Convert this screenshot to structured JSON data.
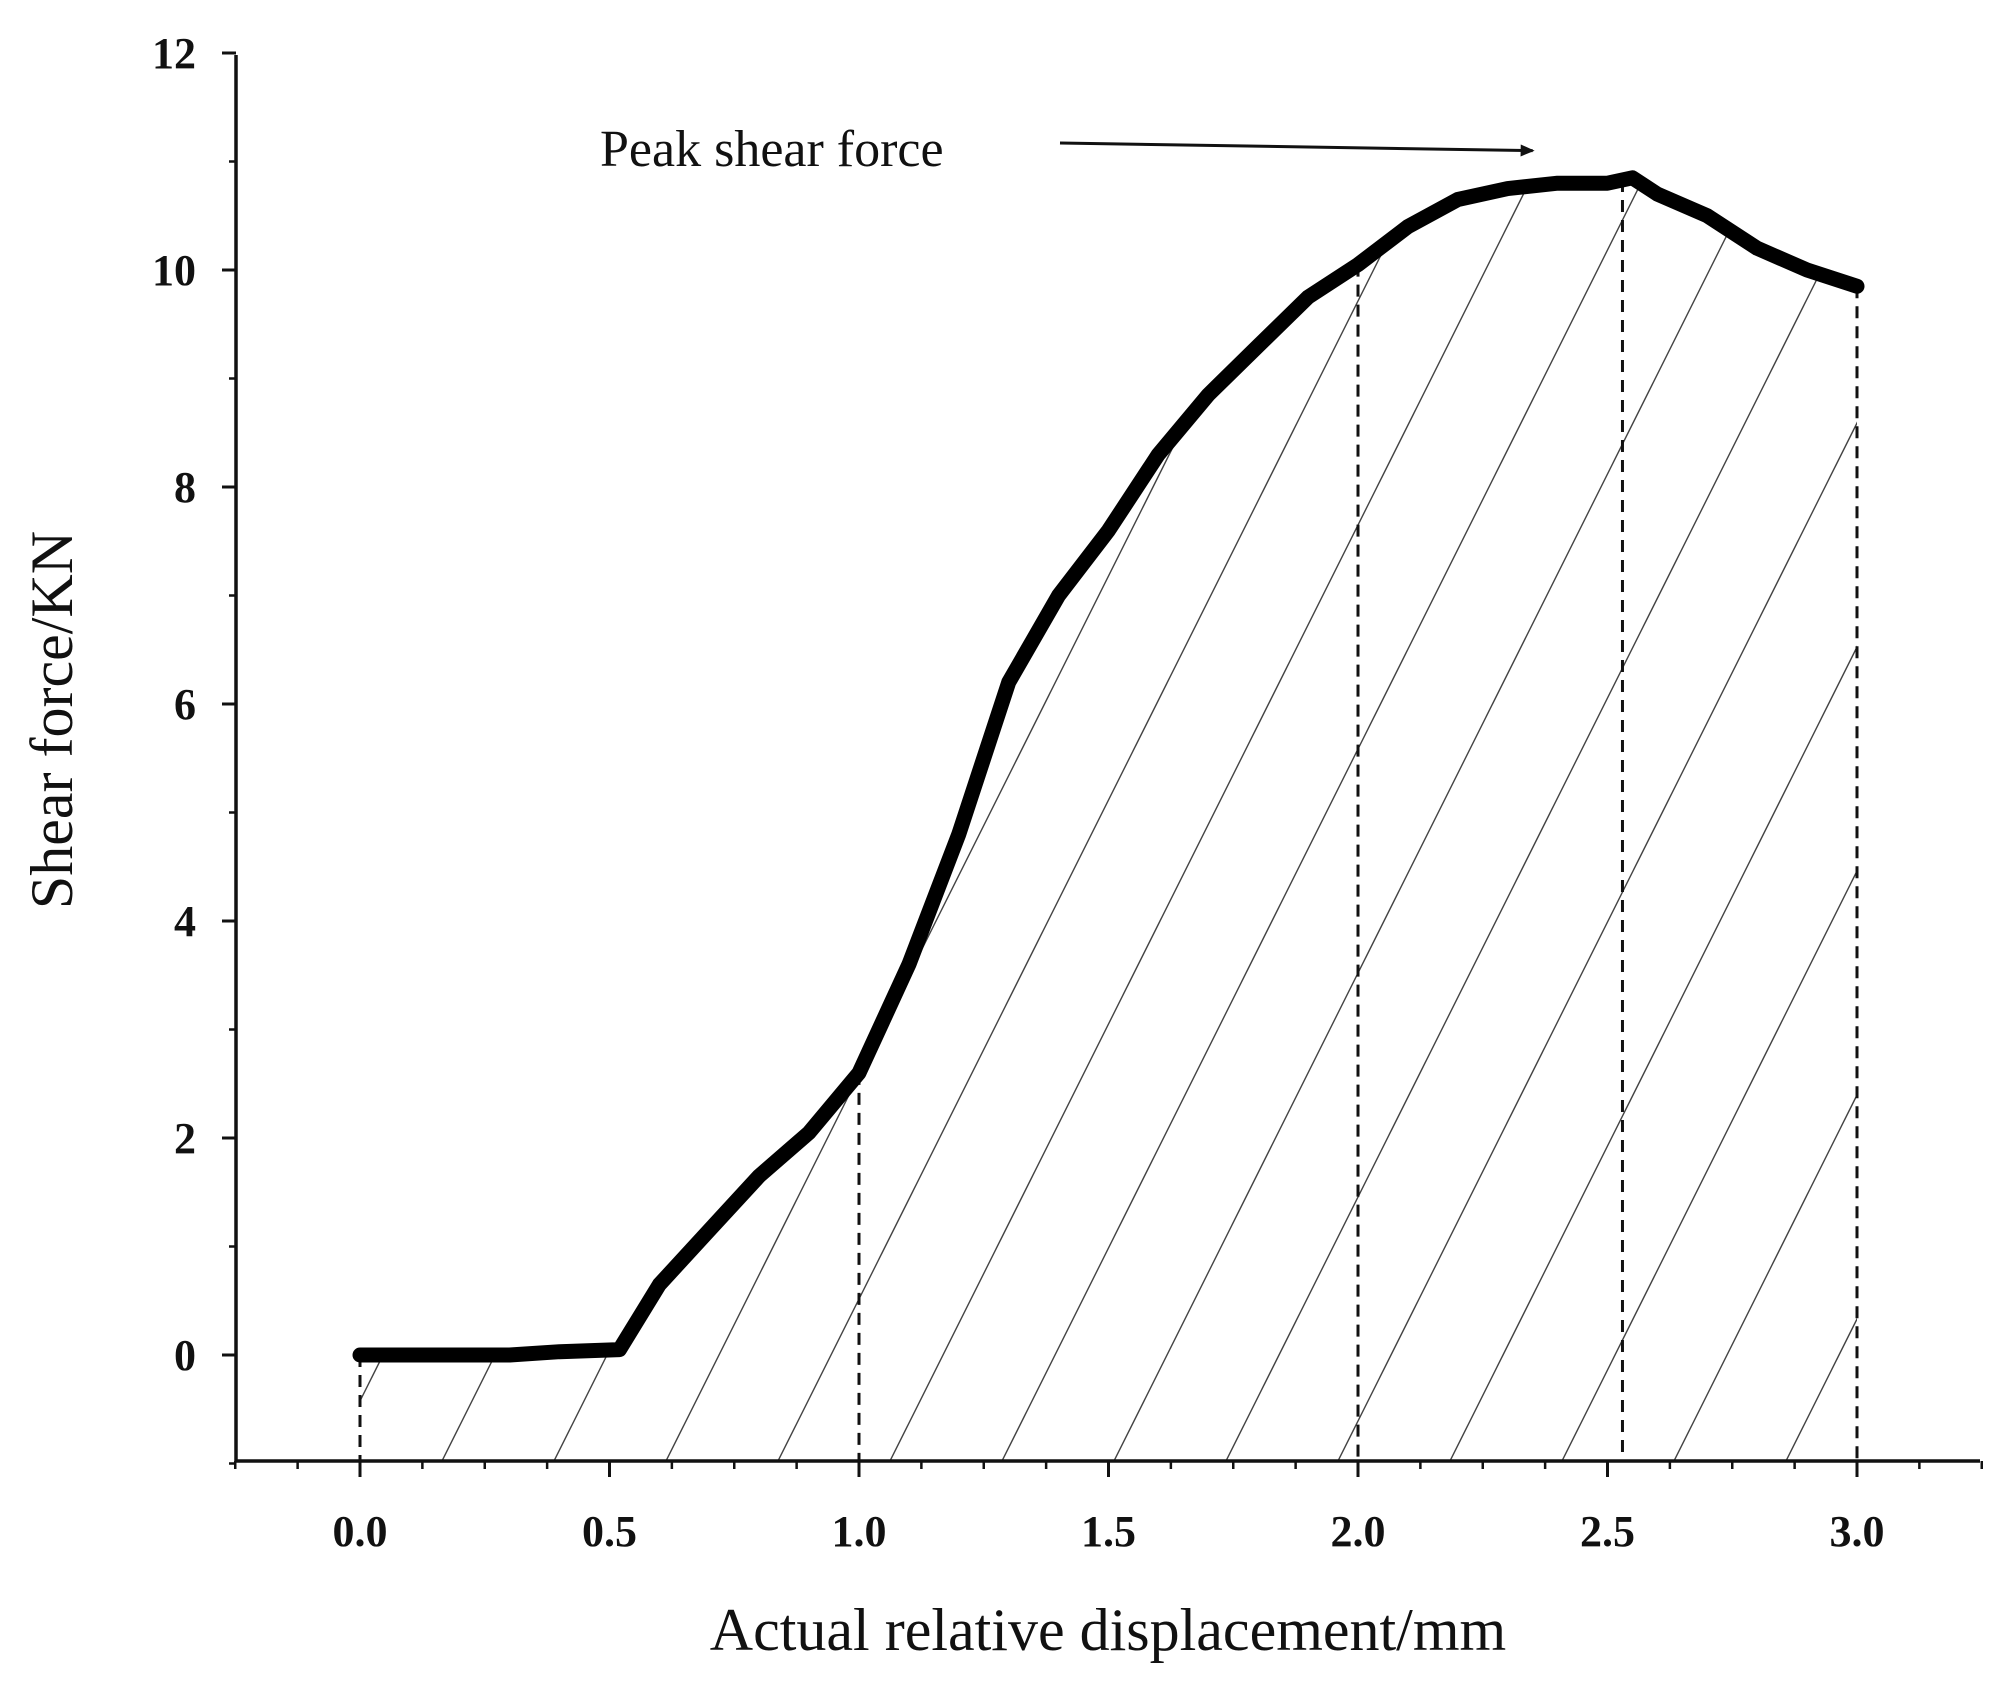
{
  "chart_data": {
    "type": "line",
    "title": "",
    "xlabel": "Actual relative displacement/mm",
    "ylabel": "Shear force/KN",
    "xlim": [
      -0.25,
      3.25
    ],
    "ylim": [
      -1,
      12
    ],
    "x_ticks": [
      0.0,
      0.5,
      1.0,
      1.5,
      2.0,
      2.5,
      3.0
    ],
    "x_tick_labels": [
      "0.0",
      "0.5",
      "1.0",
      "1.5",
      "2.0",
      "2.5",
      "3.0"
    ],
    "x_minor_step": 0.125,
    "y_ticks": [
      0,
      2,
      4,
      6,
      8,
      10,
      12
    ],
    "y_tick_labels": [
      "0",
      "2",
      "4",
      "6",
      "8",
      "10",
      "12"
    ],
    "y_minor_step": 1,
    "grid": false,
    "legend": "none",
    "series": [
      {
        "x": [
          0.0,
          0.1,
          0.2,
          0.3,
          0.4,
          0.52,
          0.6,
          0.7,
          0.8,
          0.9,
          1.0,
          1.1,
          1.2,
          1.3,
          1.4,
          1.5,
          1.6,
          1.7,
          1.8,
          1.9,
          2.0,
          2.1,
          2.2,
          2.3,
          2.4,
          2.5,
          2.55,
          2.6,
          2.7,
          2.8,
          2.9,
          3.0
        ],
        "y": [
          0.0,
          0.0,
          0.0,
          0.0,
          0.03,
          0.05,
          0.65,
          1.15,
          1.65,
          2.05,
          2.6,
          3.6,
          4.8,
          6.2,
          7.0,
          7.6,
          8.3,
          8.85,
          9.3,
          9.75,
          10.05,
          10.4,
          10.65,
          10.75,
          10.8,
          10.8,
          10.85,
          10.7,
          10.5,
          10.2,
          10.0,
          9.85
        ]
      }
    ],
    "reference_lines_x": [
      0.0,
      1.0,
      2.0,
      2.53,
      3.0
    ],
    "annotation": {
      "text": "Peak shear force",
      "target": [
        2.35,
        11.1
      ]
    }
  }
}
